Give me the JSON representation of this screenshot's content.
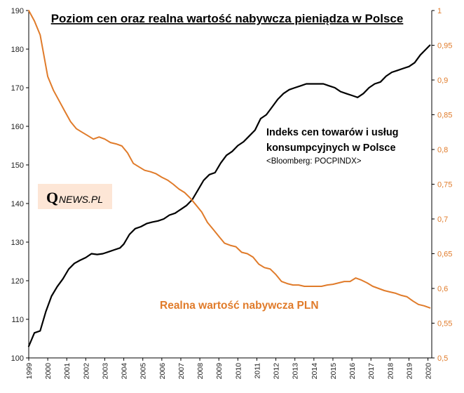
{
  "chart_data": {
    "type": "line",
    "title": "Poziom cen oraz realna wartość nabywcza pieniądza w Polsce",
    "x_ticks": [
      "1999",
      "2000",
      "2001",
      "2002",
      "2003",
      "2004",
      "2005",
      "2006",
      "2007",
      "2008",
      "2009",
      "2010",
      "2011",
      "2012",
      "2013",
      "2014",
      "2015",
      "2016",
      "2017",
      "2018",
      "2019",
      "2020"
    ],
    "xlim": [
      1999,
      2020.2
    ],
    "y_left": {
      "ticks": [
        "100",
        "110",
        "120",
        "130",
        "140",
        "150",
        "160",
        "170",
        "180",
        "190"
      ],
      "lim": [
        100,
        190
      ]
    },
    "y_right": {
      "ticks": [
        "0,5",
        "0,55",
        "0,6",
        "0,65",
        "0,7",
        "0,75",
        "0,8",
        "0,85",
        "0,9",
        "0,95",
        "1"
      ],
      "lim": [
        0.5,
        1.0
      ]
    },
    "series": [
      {
        "name": "Indeks cen towarów i usług konsumpcyjnych w Polsce",
        "axis": "left",
        "color": "#000000",
        "points": [
          [
            1999.0,
            103.0
          ],
          [
            1999.3,
            106.5
          ],
          [
            1999.6,
            107.0
          ],
          [
            1999.9,
            112.0
          ],
          [
            2000.2,
            116.0
          ],
          [
            2000.5,
            118.5
          ],
          [
            2000.8,
            120.5
          ],
          [
            2001.1,
            123.0
          ],
          [
            2001.4,
            124.5
          ],
          [
            2001.7,
            125.3
          ],
          [
            2002.0,
            126.0
          ],
          [
            2002.3,
            127.0
          ],
          [
            2002.6,
            126.8
          ],
          [
            2002.9,
            127.0
          ],
          [
            2003.2,
            127.5
          ],
          [
            2003.5,
            128.0
          ],
          [
            2003.8,
            128.5
          ],
          [
            2004.0,
            129.5
          ],
          [
            2004.3,
            132.0
          ],
          [
            2004.6,
            133.5
          ],
          [
            2004.9,
            134.0
          ],
          [
            2005.2,
            134.8
          ],
          [
            2005.5,
            135.2
          ],
          [
            2005.8,
            135.5
          ],
          [
            2006.1,
            136.0
          ],
          [
            2006.4,
            137.0
          ],
          [
            2006.7,
            137.5
          ],
          [
            2007.0,
            138.5
          ],
          [
            2007.3,
            139.5
          ],
          [
            2007.6,
            141.0
          ],
          [
            2007.9,
            143.5
          ],
          [
            2008.2,
            146.0
          ],
          [
            2008.5,
            147.5
          ],
          [
            2008.8,
            148.0
          ],
          [
            2009.1,
            150.5
          ],
          [
            2009.4,
            152.5
          ],
          [
            2009.7,
            153.5
          ],
          [
            2010.0,
            155.0
          ],
          [
            2010.3,
            156.0
          ],
          [
            2010.6,
            157.5
          ],
          [
            2010.9,
            159.0
          ],
          [
            2011.2,
            162.0
          ],
          [
            2011.5,
            163.0
          ],
          [
            2011.8,
            165.0
          ],
          [
            2012.1,
            167.0
          ],
          [
            2012.4,
            168.5
          ],
          [
            2012.7,
            169.5
          ],
          [
            2013.0,
            170.0
          ],
          [
            2013.3,
            170.5
          ],
          [
            2013.6,
            171.0
          ],
          [
            2013.9,
            171.0
          ],
          [
            2014.2,
            171.0
          ],
          [
            2014.5,
            171.0
          ],
          [
            2014.8,
            170.5
          ],
          [
            2015.1,
            170.0
          ],
          [
            2015.4,
            169.0
          ],
          [
            2015.7,
            168.5
          ],
          [
            2016.0,
            168.0
          ],
          [
            2016.3,
            167.5
          ],
          [
            2016.6,
            168.5
          ],
          [
            2016.9,
            170.0
          ],
          [
            2017.2,
            171.0
          ],
          [
            2017.5,
            171.5
          ],
          [
            2017.8,
            173.0
          ],
          [
            2018.1,
            174.0
          ],
          [
            2018.4,
            174.5
          ],
          [
            2018.7,
            175.0
          ],
          [
            2019.0,
            175.5
          ],
          [
            2019.3,
            176.5
          ],
          [
            2019.6,
            178.5
          ],
          [
            2019.9,
            180.0
          ],
          [
            2020.1,
            181.0
          ]
        ]
      },
      {
        "name": "Realna wartość nabywcza PLN",
        "axis": "right",
        "color": "#e07b2a",
        "points": [
          [
            1999.0,
            1.0
          ],
          [
            1999.3,
            0.985
          ],
          [
            1999.6,
            0.965
          ],
          [
            1999.8,
            0.935
          ],
          [
            2000.0,
            0.905
          ],
          [
            2000.3,
            0.885
          ],
          [
            2000.6,
            0.87
          ],
          [
            2000.9,
            0.855
          ],
          [
            2001.2,
            0.84
          ],
          [
            2001.5,
            0.83
          ],
          [
            2001.8,
            0.825
          ],
          [
            2002.1,
            0.82
          ],
          [
            2002.4,
            0.815
          ],
          [
            2002.7,
            0.818
          ],
          [
            2003.0,
            0.815
          ],
          [
            2003.3,
            0.81
          ],
          [
            2003.6,
            0.808
          ],
          [
            2003.9,
            0.805
          ],
          [
            2004.2,
            0.795
          ],
          [
            2004.5,
            0.78
          ],
          [
            2004.8,
            0.775
          ],
          [
            2005.1,
            0.77
          ],
          [
            2005.4,
            0.768
          ],
          [
            2005.7,
            0.765
          ],
          [
            2006.0,
            0.76
          ],
          [
            2006.3,
            0.756
          ],
          [
            2006.6,
            0.75
          ],
          [
            2006.9,
            0.743
          ],
          [
            2007.2,
            0.738
          ],
          [
            2007.5,
            0.73
          ],
          [
            2007.8,
            0.72
          ],
          [
            2008.1,
            0.71
          ],
          [
            2008.4,
            0.695
          ],
          [
            2008.7,
            0.685
          ],
          [
            2009.0,
            0.675
          ],
          [
            2009.3,
            0.665
          ],
          [
            2009.6,
            0.662
          ],
          [
            2009.9,
            0.66
          ],
          [
            2010.2,
            0.652
          ],
          [
            2010.5,
            0.65
          ],
          [
            2010.8,
            0.645
          ],
          [
            2011.1,
            0.635
          ],
          [
            2011.4,
            0.63
          ],
          [
            2011.7,
            0.628
          ],
          [
            2012.0,
            0.62
          ],
          [
            2012.3,
            0.61
          ],
          [
            2012.6,
            0.607
          ],
          [
            2012.9,
            0.605
          ],
          [
            2013.2,
            0.605
          ],
          [
            2013.5,
            0.603
          ],
          [
            2013.8,
            0.603
          ],
          [
            2014.1,
            0.603
          ],
          [
            2014.4,
            0.603
          ],
          [
            2014.7,
            0.605
          ],
          [
            2015.0,
            0.606
          ],
          [
            2015.3,
            0.608
          ],
          [
            2015.6,
            0.61
          ],
          [
            2015.9,
            0.61
          ],
          [
            2016.2,
            0.615
          ],
          [
            2016.5,
            0.612
          ],
          [
            2016.8,
            0.608
          ],
          [
            2017.1,
            0.603
          ],
          [
            2017.4,
            0.6
          ],
          [
            2017.7,
            0.597
          ],
          [
            2018.0,
            0.595
          ],
          [
            2018.3,
            0.593
          ],
          [
            2018.6,
            0.59
          ],
          [
            2018.9,
            0.588
          ],
          [
            2019.2,
            0.582
          ],
          [
            2019.5,
            0.577
          ],
          [
            2019.8,
            0.575
          ],
          [
            2020.1,
            0.572
          ]
        ]
      }
    ],
    "annotations": {
      "black_label_line1": "Indeks cen towarów i usług",
      "black_label_line2": "konsumpcyjnych  w Polsce",
      "source": "<Bloomberg: POCPINDX>",
      "orange_label": "Realna wartość nabywcza PLN"
    },
    "logo": {
      "initial": "Q",
      "rest": "NEWS.PL",
      "bg_color": "#fde6d6"
    },
    "colors": {
      "black_series": "#000000",
      "orange_series": "#e07b2a",
      "axis": "#000000",
      "right_axis_text": "#e07b2a"
    }
  }
}
